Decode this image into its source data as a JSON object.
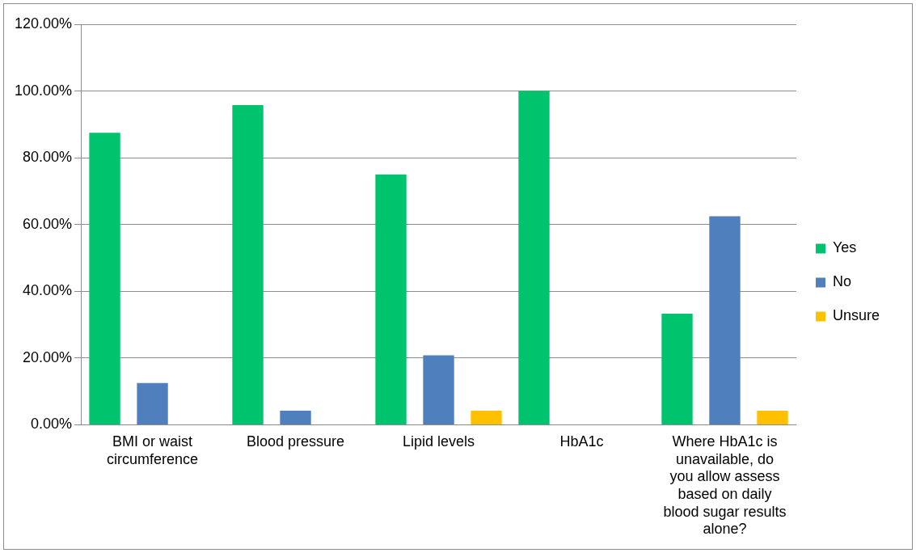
{
  "chart_data": {
    "type": "bar",
    "categories": [
      "BMI or waist circumference",
      "Blood pressure",
      "Lipid levels",
      "HbA1c",
      "Where HbA1c is unavailable, do you allow assess based on daily blood sugar results alone?"
    ],
    "series": [
      {
        "name": "Yes",
        "color": "#00c36e",
        "values": [
          87.5,
          95.8,
          75,
          100,
          33.3
        ]
      },
      {
        "name": "No",
        "color": "#4f7fbc",
        "values": [
          12.5,
          4.2,
          20.8,
          0,
          62.5
        ]
      },
      {
        "name": "Unsure",
        "color": "#ffc000",
        "values": [
          0,
          0,
          4.2,
          0,
          4.2
        ]
      }
    ],
    "ylim": [
      0,
      120
    ],
    "yticks": [
      {
        "value": 0,
        "label": "0.00%"
      },
      {
        "value": 20,
        "label": "20.00%"
      },
      {
        "value": 40,
        "label": "40.00%"
      },
      {
        "value": 60,
        "label": "60.00%"
      },
      {
        "value": 80,
        "label": "80.00%"
      },
      {
        "value": 100,
        "label": "100.00%"
      },
      {
        "value": 120,
        "label": "120.00%"
      }
    ],
    "grid": "y",
    "legend": "right"
  }
}
